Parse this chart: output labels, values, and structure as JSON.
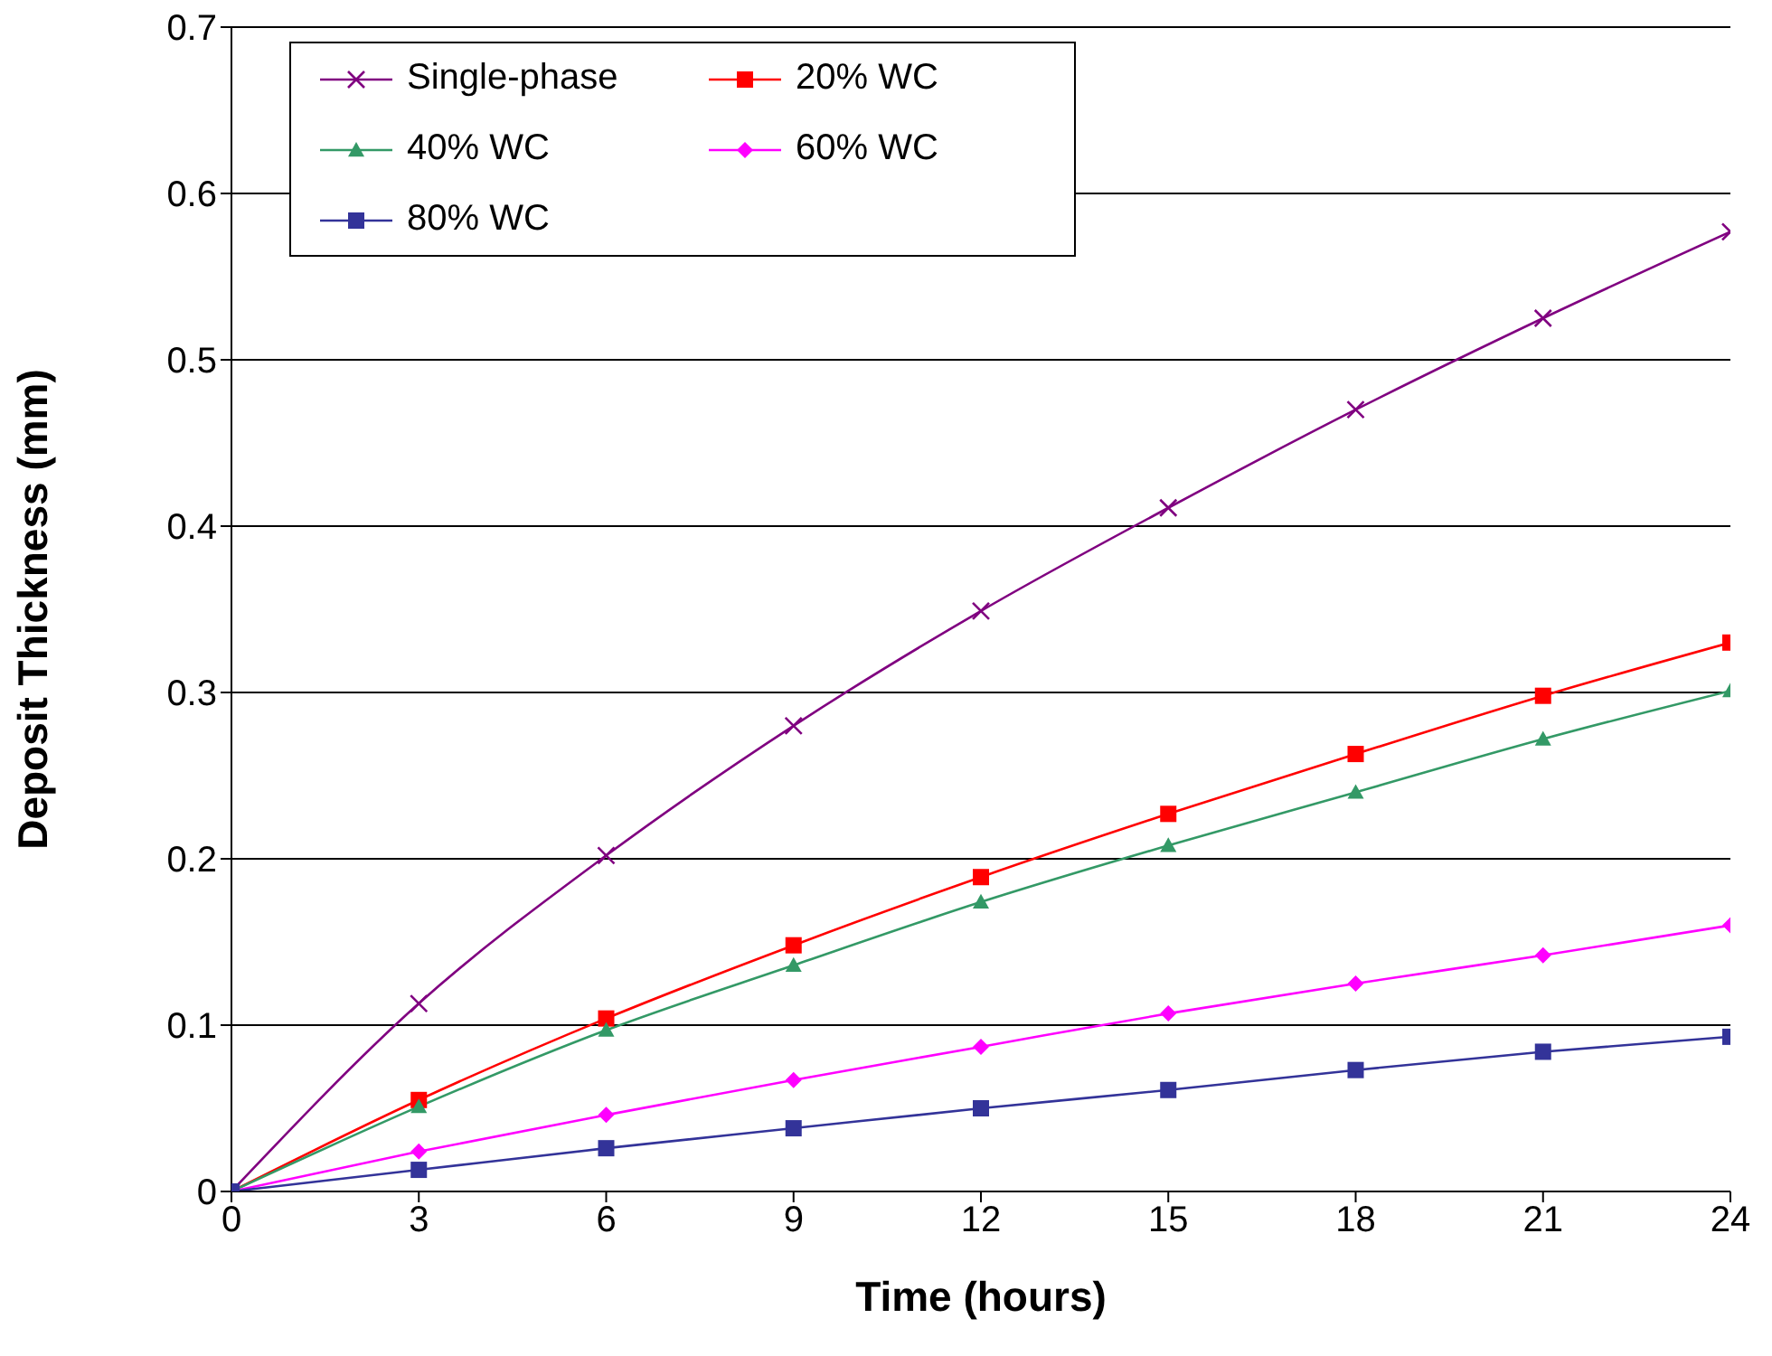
{
  "chart_data": {
    "type": "line",
    "xlabel": "Time (hours)",
    "ylabel": "Deposit Thickness (mm)",
    "x": [
      0,
      3,
      6,
      9,
      12,
      15,
      18,
      21,
      24
    ],
    "xlim": [
      0,
      24
    ],
    "xticks": [
      0,
      3,
      6,
      9,
      12,
      15,
      18,
      21,
      24
    ],
    "ylim": [
      0,
      0.7
    ],
    "yticks": [
      0,
      0.1,
      0.2,
      0.3,
      0.4,
      0.5,
      0.6,
      0.7
    ],
    "grid": "y",
    "legend": "top left",
    "series": [
      {
        "name": "Single-phase",
        "color": "#800080",
        "marker": "cross",
        "values": [
          0,
          0.113,
          0.202,
          0.28,
          0.349,
          0.411,
          0.47,
          0.525,
          0.577
        ]
      },
      {
        "name": "20% WC",
        "color": "#ff0000",
        "marker": "square",
        "values": [
          0,
          0.055,
          0.104,
          0.148,
          0.189,
          0.227,
          0.263,
          0.298,
          0.33
        ]
      },
      {
        "name": "40% WC",
        "color": "#339966",
        "marker": "triangle",
        "values": [
          0,
          0.051,
          0.097,
          0.136,
          0.174,
          0.208,
          0.24,
          0.272,
          0.301
        ]
      },
      {
        "name": "60% WC",
        "color": "#ff00ff",
        "marker": "diamond",
        "values": [
          0,
          0.024,
          0.046,
          0.067,
          0.087,
          0.107,
          0.125,
          0.142,
          0.16
        ]
      },
      {
        "name": "80% WC",
        "color": "#333399",
        "marker": "square",
        "values": [
          0,
          0.013,
          0.026,
          0.038,
          0.05,
          0.061,
          0.073,
          0.084,
          0.093
        ]
      }
    ]
  }
}
